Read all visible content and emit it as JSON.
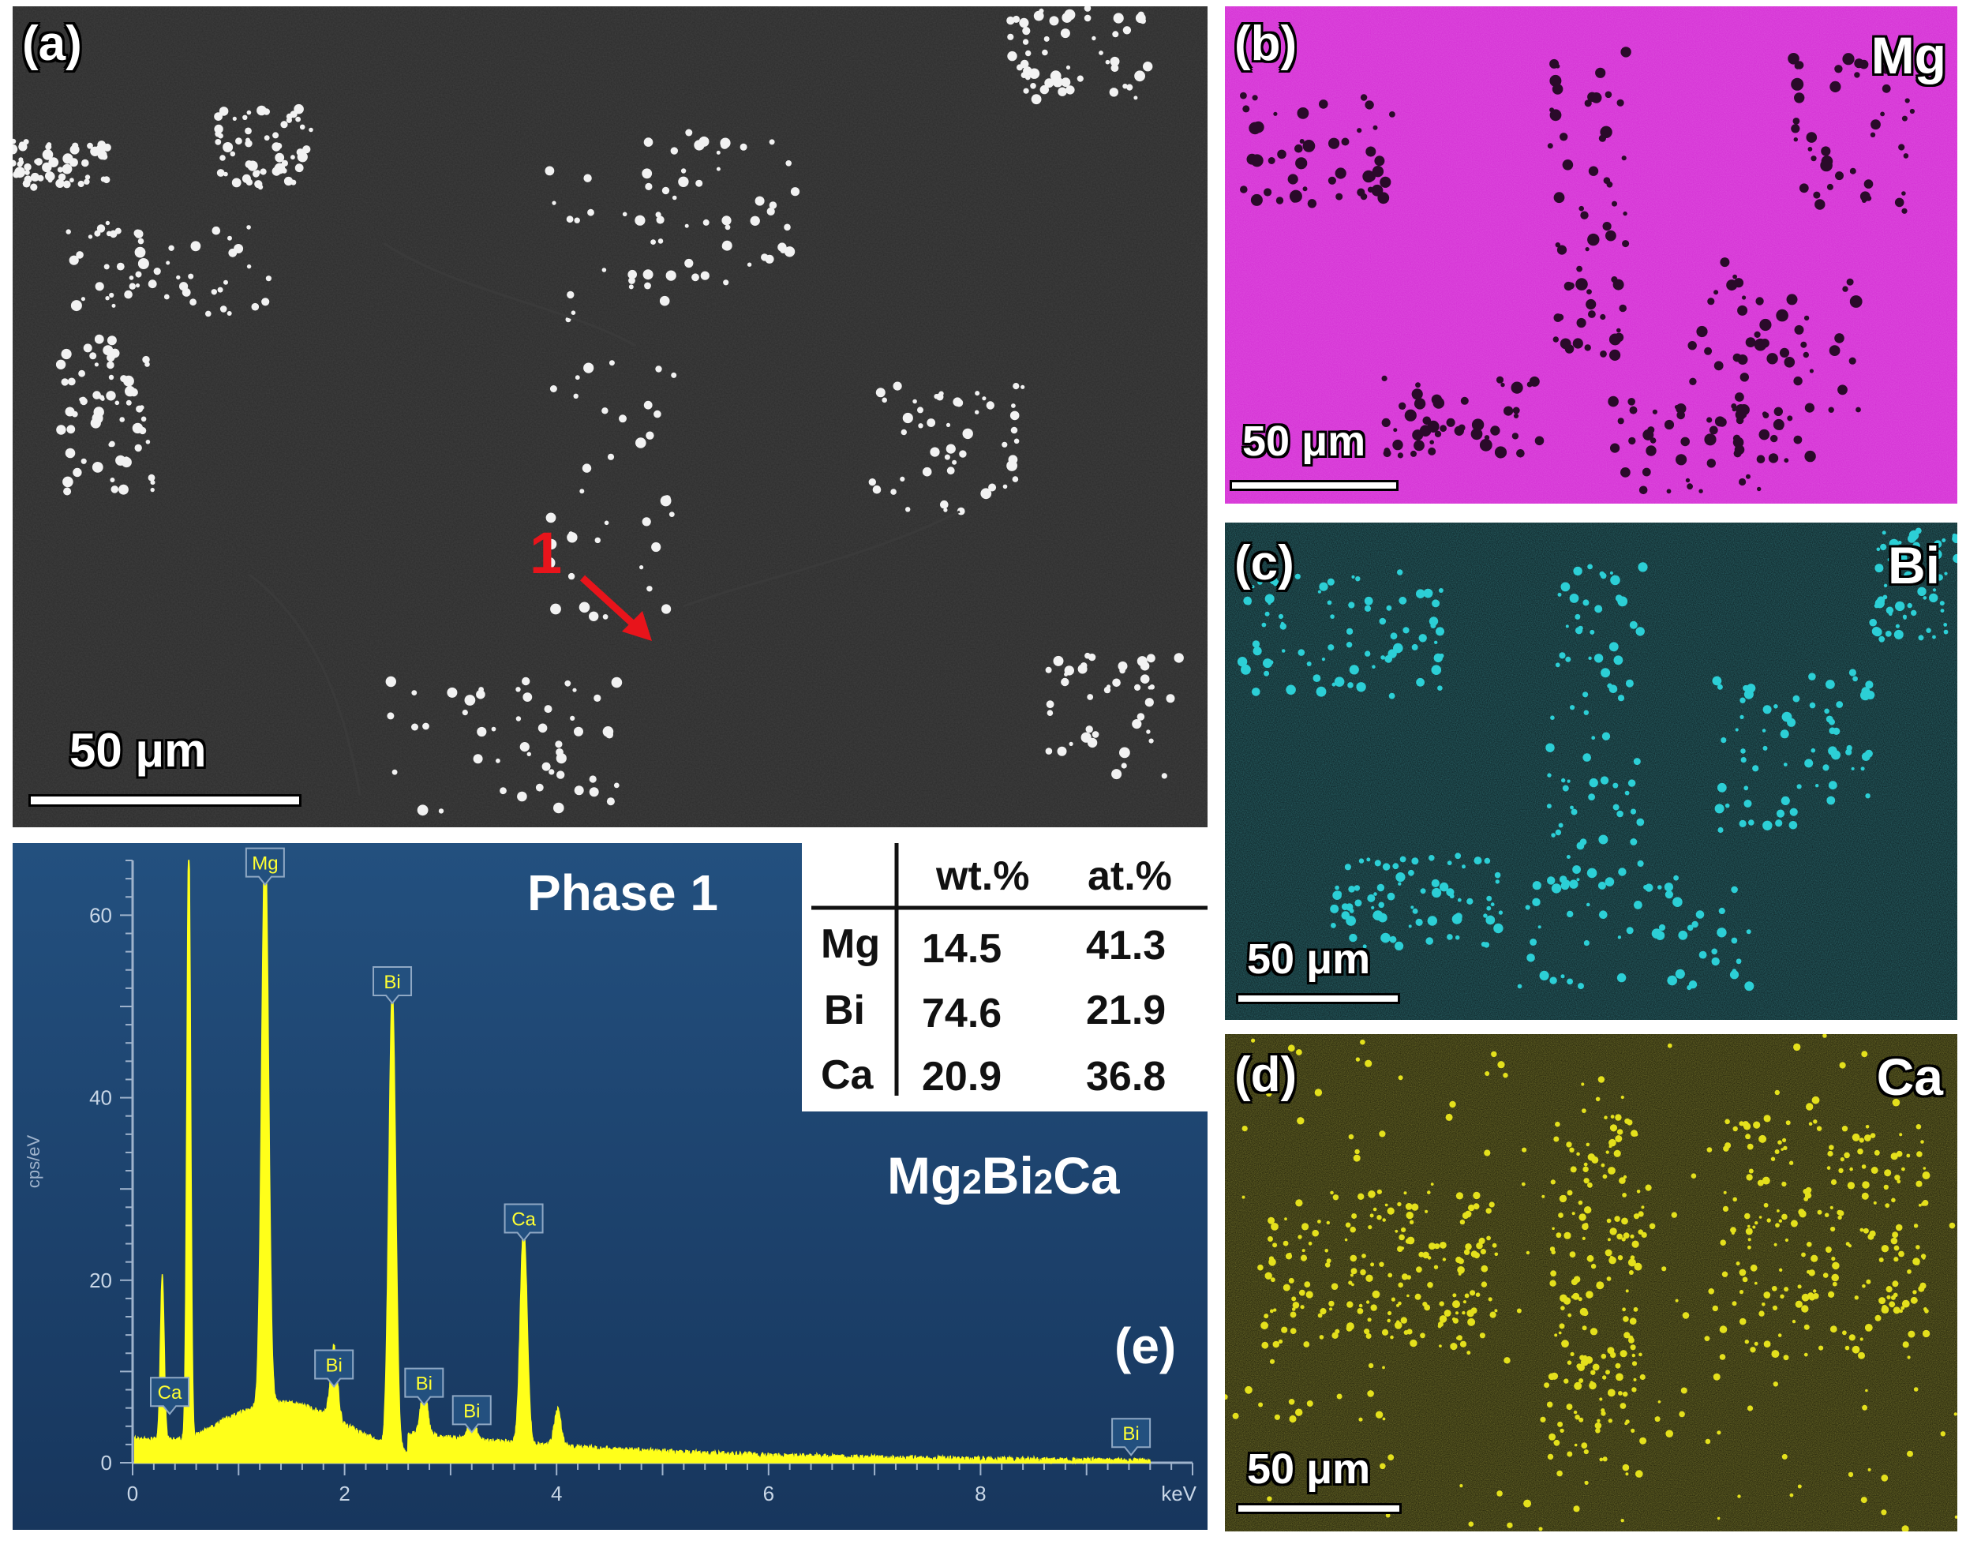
{
  "panels": {
    "a": {
      "label": "(a)",
      "scale": "50 μm",
      "marker": "1"
    },
    "b": {
      "label": "(b)",
      "element": "Mg",
      "scale": "50 μm",
      "color": "#d42ad4"
    },
    "c": {
      "label": "(c)",
      "element": "Bi",
      "scale": "50 μm",
      "color": "#2ccfd6"
    },
    "d": {
      "label": "(d)",
      "element": "Ca",
      "scale": "50 μm",
      "color": "#d8d41a"
    },
    "e": {
      "label": "(e)",
      "phase_title": "Phase 1",
      "formula": {
        "p1": "Mg",
        "s1": "2",
        "p2": "Bi",
        "s2": "2",
        "p3": "Ca"
      },
      "table": {
        "headers": [
          "wt.%",
          "at.%"
        ],
        "rows": [
          {
            "element": "Mg",
            "wt": "14.5",
            "at": "41.3"
          },
          {
            "element": "Bi",
            "wt": "74.6",
            "at": "21.9"
          },
          {
            "element": "Ca",
            "wt": "20.9",
            "at": "36.8"
          }
        ]
      }
    }
  },
  "chart_data": {
    "type": "line",
    "xlabel": "keV",
    "ylabel": "cps/eV",
    "xlim": [
      0,
      10
    ],
    "ylim": [
      0,
      66
    ],
    "x_ticks": [
      "0",
      "2",
      "4",
      "6",
      "8"
    ],
    "y_ticks": [
      "0",
      "20",
      "40",
      "60"
    ],
    "line_color": "#ffff1a",
    "peaks": [
      {
        "x": 0.28,
        "y": 18
      },
      {
        "x": 0.53,
        "y": 66
      },
      {
        "x": 1.25,
        "y": 63
      },
      {
        "x": 1.9,
        "y": 8
      },
      {
        "x": 2.45,
        "y": 50
      },
      {
        "x": 2.75,
        "y": 5
      },
      {
        "x": 3.2,
        "y": 3
      },
      {
        "x": 3.69,
        "y": 24
      },
      {
        "x": 4.01,
        "y": 4
      }
    ],
    "annotations": [
      {
        "text": "Ca",
        "x": 0.35,
        "y": 5
      },
      {
        "text": "Mg",
        "x": 1.25,
        "y": 63
      },
      {
        "text": "Bi",
        "x": 2.45,
        "y": 50
      },
      {
        "text": "Bi",
        "x": 1.9,
        "y": 8
      },
      {
        "text": "Bi",
        "x": 2.75,
        "y": 6
      },
      {
        "text": "Bi",
        "x": 3.2,
        "y": 3
      },
      {
        "text": "Ca",
        "x": 3.69,
        "y": 24
      },
      {
        "text": "Bi",
        "x": 9.42,
        "y": 0.5
      }
    ]
  }
}
